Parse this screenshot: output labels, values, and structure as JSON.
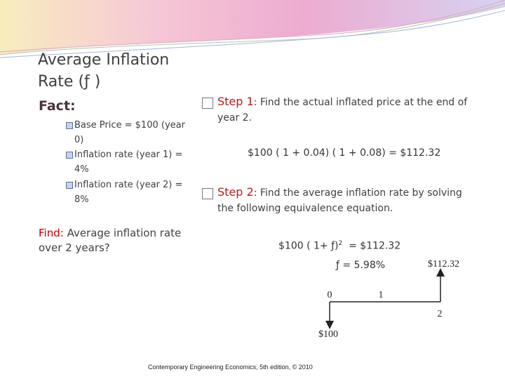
{
  "title": "Average Inflation Rate (ƒ )",
  "fact_label": "Fact:",
  "facts": [
    "Base Price = $100 (year 0)",
    "Inflation rate (year 1) = 4%",
    "Inflation rate (year 2) = 8%"
  ],
  "find": {
    "label": "Find:",
    "text": " Average inflation rate over 2 years?"
  },
  "step1": {
    "label": "Step 1",
    "text": ": Find the actual inflated price at the end of year  2."
  },
  "equation1": "$100 ( 1 + 0.04) ( 1 + 0.08) = $112.32",
  "step2": {
    "label": "Step 2",
    "text": ": Find the average inflation rate by solving the following equivalence equation."
  },
  "equation2": {
    "left": "$100 ( 1+ ƒ)",
    "exponent": "2",
    "right": "  = $112.32"
  },
  "result": "ƒ = 5.98%",
  "diagram": {
    "periods": [
      "0",
      "1",
      "2"
    ],
    "inflow": "$112.32",
    "outflow": "$100"
  },
  "footer": "Contemporary Engineering Economics, 5th edition, © 2010"
}
